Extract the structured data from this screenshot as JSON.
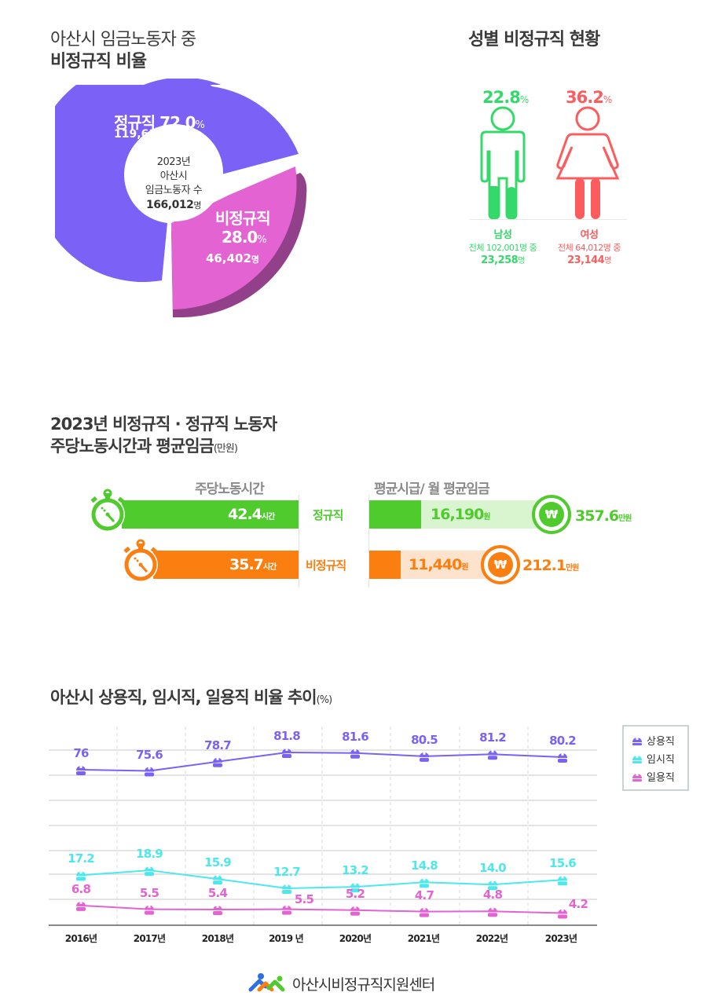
{
  "section1": {
    "title_line1": "아산시 임금노동자 중",
    "title_line2": "비정규직 비율",
    "center": {
      "year": "2023년",
      "city": "아산시",
      "label": "임금노동자 수",
      "total": "166,012",
      "unit": "명"
    },
    "regular": {
      "label": "정규직",
      "pct": "72.0",
      "pct_unit": "%",
      "count": "119,610",
      "count_unit": "명",
      "color": "#7b61f5"
    },
    "nonregular": {
      "label": "비정규직",
      "pct": "28.0",
      "pct_unit": "%",
      "count": "46,402",
      "count_unit": "명",
      "color": "#e463d2",
      "shade": "#93408a"
    }
  },
  "section2": {
    "title": "성별 비정규직 현황",
    "male": {
      "pct": "22.8",
      "pct_unit": "%",
      "label": "남성",
      "sub": "전체 102,001명 중",
      "count": "23,258",
      "count_unit": "명",
      "color": "#35d96a"
    },
    "female": {
      "pct": "36.2",
      "pct_unit": "%",
      "label": "여성",
      "sub": "전체 64,012명 중",
      "count": "23,144",
      "count_unit": "명",
      "color": "#fb5d5f"
    }
  },
  "section3": {
    "title_line1": "2023년 비정규직 · 정규직 노동자",
    "title_line2": "주당노동시간과 평균임금",
    "title_unit": "(만원)",
    "col_hours": "주당노동시간",
    "col_wage": "평균시급/ 월 평균임금",
    "rows": [
      {
        "label": "정규직",
        "hours": "42.4",
        "hours_unit": "시간",
        "hourly": "16,190",
        "hourly_unit": "원",
        "monthly": "357.6",
        "monthly_unit": "만원",
        "color": "#4fcb2d",
        "light": "#d8f5d0"
      },
      {
        "label": "비정규직",
        "hours": "35.7",
        "hours_unit": "시간",
        "hourly": "11,440",
        "hourly_unit": "원",
        "monthly": "212.1",
        "monthly_unit": "만원",
        "color": "#fb7e10",
        "light": "#fde3cc"
      }
    ],
    "won_symbol": "₩"
  },
  "section4": {
    "title": "아산시 상용직, 임시직, 일용직 비율 추이",
    "title_unit": "(%)",
    "legend": [
      {
        "label": "상용직",
        "color": "#7b61f5"
      },
      {
        "label": "임시직",
        "color": "#4de8ec"
      },
      {
        "label": "일용직",
        "color": "#e463d2"
      }
    ],
    "years": [
      "2016년",
      "2017년",
      "2018년",
      "2019 년",
      "2020년",
      "2021년",
      "2022년",
      "2023년"
    ]
  },
  "footer": {
    "org": "아산시비정규직지원센터"
  },
  "chart_data": [
    {
      "type": "pie",
      "title": "아산시 임금노동자 중 비정규직 비율",
      "categories": [
        "정규직",
        "비정규직"
      ],
      "values": [
        72.0,
        28.0
      ],
      "counts": [
        119610,
        46402
      ],
      "total": 166012,
      "center_text": "2023년 아산시 임금노동자 수 166,012명"
    },
    {
      "type": "bar",
      "title": "성별 비정규직 현황",
      "categories": [
        "남성",
        "여성"
      ],
      "values": [
        22.8,
        36.2
      ],
      "totals": [
        102001,
        64012
      ],
      "counts": [
        23258,
        23144
      ],
      "unit": "%"
    },
    {
      "type": "bar",
      "title": "2023년 비정규직 · 정규직 노동자 주당노동시간과 평균임금(만원)",
      "categories": [
        "정규직",
        "비정규직"
      ],
      "series": [
        {
          "name": "주당노동시간(시간)",
          "values": [
            42.4,
            35.7
          ]
        },
        {
          "name": "평균시급(원)",
          "values": [
            16190,
            11440
          ]
        },
        {
          "name": "월 평균임금(만원)",
          "values": [
            357.6,
            212.1
          ]
        }
      ]
    },
    {
      "type": "line",
      "title": "아산시 상용직, 임시직, 일용직 비율 추이(%)",
      "x": [
        "2016년",
        "2017년",
        "2018년",
        "2019년",
        "2020년",
        "2021년",
        "2022년",
        "2023년"
      ],
      "series": [
        {
          "name": "상용직",
          "values": [
            76,
            75.6,
            78.7,
            81.8,
            81.6,
            80.5,
            81.2,
            80.2
          ]
        },
        {
          "name": "임시직",
          "values": [
            17.2,
            18.9,
            15.9,
            12.7,
            13.2,
            14.8,
            14.0,
            15.6
          ]
        },
        {
          "name": "일용직",
          "values": [
            6.8,
            5.5,
            5.4,
            5.5,
            5.2,
            4.7,
            4.8,
            4.2
          ]
        }
      ],
      "xlabel": "",
      "ylabel": "%",
      "legend_position": "right",
      "grid": true
    }
  ]
}
